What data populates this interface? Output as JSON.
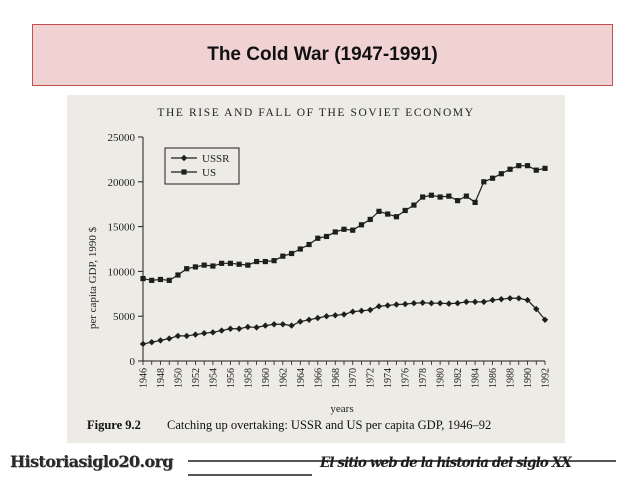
{
  "slide": {
    "title": "The Cold War (1947-1991)",
    "footer_left": "Historiasiglo20.org",
    "footer_right": "El sitio web de la historia del siglo XX"
  },
  "figure": {
    "heading": "THE RISE AND FALL OF THE SOVIET ECONOMY",
    "caption_label": "Figure 9.2",
    "caption_text": "Catching up overtaking: USSR and US per capita GDP, 1946–92"
  },
  "chart_data": {
    "type": "line",
    "xlabel": "years",
    "ylabel": "per capita GDP, 1990 $",
    "xlim": [
      1946,
      1992
    ],
    "ylim": [
      0,
      25000
    ],
    "y_ticks": [
      0,
      5000,
      10000,
      15000,
      20000,
      25000
    ],
    "x_tick_labels": [
      "1946",
      "1948",
      "1950",
      "1952",
      "1954",
      "1956",
      "1958",
      "1960",
      "1962",
      "1964",
      "1966",
      "1968",
      "1970",
      "1972",
      "1974",
      "1976",
      "1978",
      "1980",
      "1982",
      "1984",
      "1986",
      "1988",
      "1990",
      "1992"
    ],
    "legend": "top-left",
    "grid": false,
    "x": [
      1946,
      1947,
      1948,
      1949,
      1950,
      1951,
      1952,
      1953,
      1954,
      1955,
      1956,
      1957,
      1958,
      1959,
      1960,
      1961,
      1962,
      1963,
      1964,
      1965,
      1966,
      1967,
      1968,
      1969,
      1970,
      1971,
      1972,
      1973,
      1974,
      1975,
      1976,
      1977,
      1978,
      1979,
      1980,
      1981,
      1982,
      1983,
      1984,
      1985,
      1986,
      1987,
      1988,
      1989,
      1990,
      1991,
      1992
    ],
    "series": [
      {
        "name": "USSR",
        "marker": "diamond",
        "values": [
          1900,
          2100,
          2300,
          2500,
          2800,
          2800,
          2950,
          3100,
          3200,
          3400,
          3600,
          3600,
          3800,
          3750,
          3950,
          4100,
          4100,
          3950,
          4400,
          4600,
          4800,
          5000,
          5100,
          5200,
          5500,
          5600,
          5700,
          6100,
          6200,
          6300,
          6350,
          6450,
          6500,
          6450,
          6450,
          6400,
          6450,
          6600,
          6600,
          6600,
          6800,
          6900,
          7000,
          7000,
          6800,
          5800,
          4600
        ]
      },
      {
        "name": "US",
        "marker": "square",
        "values": [
          9200,
          9000,
          9100,
          9000,
          9600,
          10300,
          10500,
          10700,
          10600,
          10900,
          10900,
          10800,
          10700,
          11100,
          11100,
          11200,
          11700,
          12000,
          12500,
          13000,
          13700,
          13900,
          14400,
          14700,
          14600,
          15200,
          15800,
          16700,
          16400,
          16100,
          16800,
          17400,
          18300,
          18500,
          18300,
          18400,
          17900,
          18400,
          17700,
          20000,
          20400,
          20900,
          21400,
          21800,
          21800,
          21300,
          21500
        ]
      }
    ]
  }
}
